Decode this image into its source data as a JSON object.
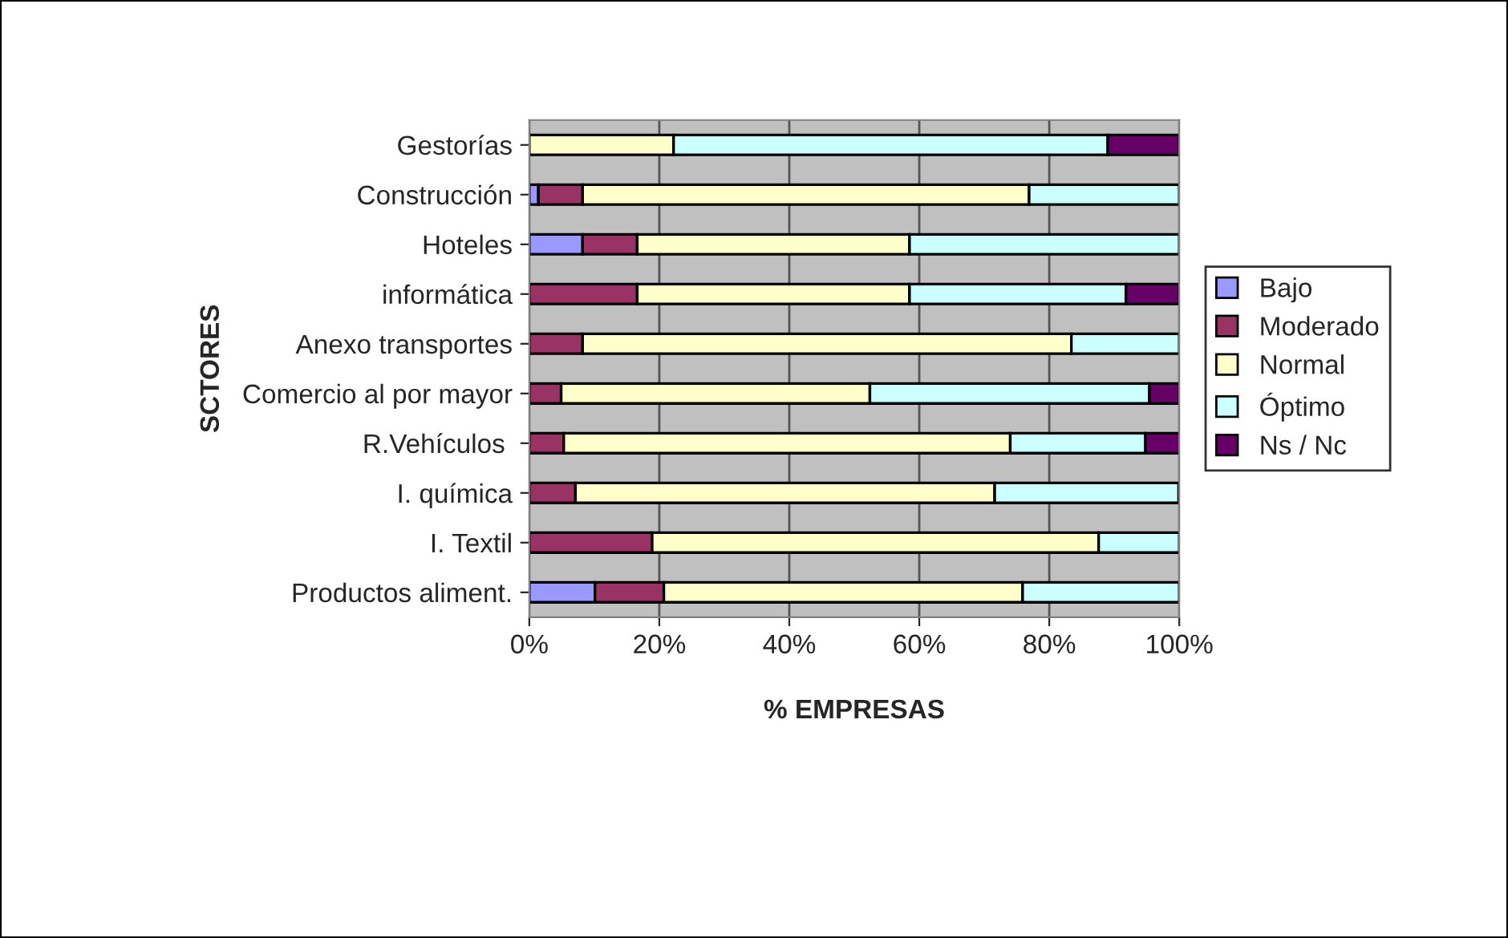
{
  "chart_data": {
    "type": "bar",
    "orientation": "horizontal",
    "stacked": true,
    "xlabel": "% EMPRESAS",
    "ylabel": "SCTORES",
    "categories": [
      "Gestorías",
      "Construcción",
      "Hoteles",
      "informática",
      "Anexo transportes",
      "Comercio al por mayor",
      "R.Vehículos ",
      "I. química",
      "I. Textil",
      "Productos aliment."
    ],
    "series": [
      {
        "name": "Bajo",
        "color": "#9999ff",
        "values": [
          null,
          1.4,
          8.2,
          null,
          null,
          null,
          null,
          null,
          null,
          10.1
        ]
      },
      {
        "name": "Moderado",
        "color": "#993366",
        "values": [
          null,
          6.8,
          8.4,
          16.6,
          8.2,
          4.9,
          5.3,
          7.1,
          18.9,
          10.6
        ]
      },
      {
        "name": "Normal",
        "color": "#ffffcc",
        "values": [
          22.2,
          68.7,
          41.9,
          41.9,
          75.2,
          47.5,
          68.7,
          64.5,
          68.7,
          55.2
        ]
      },
      {
        "name": "Óptimo",
        "color": "#ccffff",
        "values": [
          66.8,
          23.1,
          41.5,
          33.3,
          16.6,
          43.0,
          20.8,
          28.3,
          12.4,
          24.1
        ]
      },
      {
        "name": "Ns / Nc",
        "color": "#660066",
        "values": [
          11.0,
          null,
          null,
          8.2,
          null,
          4.6,
          5.3,
          null,
          null,
          null
        ]
      }
    ],
    "xlim": [
      0,
      100
    ],
    "xticks": [
      {
        "value": 0,
        "label": "0%"
      },
      {
        "value": 20,
        "label": "20%"
      },
      {
        "value": 40,
        "label": "40%"
      },
      {
        "value": 60,
        "label": "60%"
      },
      {
        "value": 80,
        "label": "80%"
      },
      {
        "value": 100,
        "label": "100%"
      }
    ],
    "grid": "x",
    "legend": "right"
  }
}
